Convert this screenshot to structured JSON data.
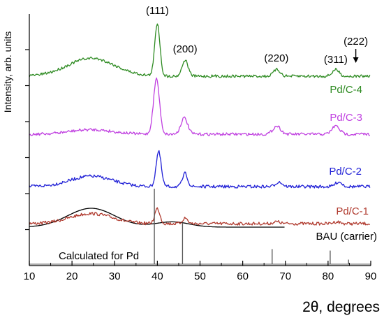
{
  "chart_data": {
    "type": "line",
    "xlabel": "2θ, degrees",
    "ylabel": "Intensity, arb. units",
    "xlim": [
      10,
      90
    ],
    "x_ticks": [
      "10",
      "20",
      "30",
      "40",
      "50",
      "60",
      "70",
      "80",
      "90"
    ],
    "grid": false,
    "peak_labels": [
      {
        "text": "(111)",
        "x": 40.0
      },
      {
        "text": "(200)",
        "x": 46.5
      },
      {
        "text": "(220)",
        "x": 67.9
      },
      {
        "text": "(311)",
        "x": 81.8
      },
      {
        "text": "(222)",
        "x": 86.5
      }
    ],
    "reference_lines": {
      "name": "Calculated for Pd",
      "color": "#555555",
      "peaks": [
        {
          "x": 39.3,
          "rel_intensity": 1.0
        },
        {
          "x": 45.9,
          "rel_intensity": 0.55
        },
        {
          "x": 66.9,
          "rel_intensity": 0.2
        },
        {
          "x": 80.5,
          "rel_intensity": 0.18
        },
        {
          "x": 84.8,
          "rel_intensity": 0.06
        }
      ]
    },
    "series": [
      {
        "name": "BAU (carrier)",
        "color": "#000000",
        "x_end": 70,
        "peaks": [
          {
            "x": 24.5,
            "height": 0.9,
            "width": 5.5
          },
          {
            "x": 43.5,
            "height": 0.25,
            "width": 4
          }
        ]
      },
      {
        "name": "Pd/C-1",
        "color": "#b03a2e",
        "peaks": [
          {
            "x": 24.5,
            "height": 0.8,
            "width": 5
          },
          {
            "x": 40.0,
            "height": 1.2,
            "width": 0.6
          },
          {
            "x": 46.5,
            "height": 0.45,
            "width": 0.6
          },
          {
            "x": 68.0,
            "height": 0.15,
            "width": 0.8
          },
          {
            "x": 82.0,
            "height": 0.15,
            "width": 0.8
          }
        ]
      },
      {
        "name": "Pd/C-2",
        "color": "#1f1fd6",
        "peaks": [
          {
            "x": 24.5,
            "height": 0.55,
            "width": 5
          },
          {
            "x": 40.3,
            "height": 1.85,
            "width": 0.6
          },
          {
            "x": 46.5,
            "height": 0.7,
            "width": 0.6
          },
          {
            "x": 68.5,
            "height": 0.25,
            "width": 0.8
          },
          {
            "x": 82.5,
            "height": 0.25,
            "width": 0.8
          }
        ]
      },
      {
        "name": "Pd/C-3",
        "color": "#c040e0",
        "peaks": [
          {
            "x": 24.5,
            "height": 0.25,
            "width": 5
          },
          {
            "x": 39.8,
            "height": 3.05,
            "width": 0.7
          },
          {
            "x": 46.3,
            "height": 0.9,
            "width": 0.8
          },
          {
            "x": 68.0,
            "height": 0.45,
            "width": 0.9
          },
          {
            "x": 81.8,
            "height": 0.45,
            "width": 0.9
          }
        ]
      },
      {
        "name": "Pd/C-4",
        "color": "#2e8b22",
        "peaks": [
          {
            "x": 24.5,
            "height": 0.95,
            "width": 5.5
          },
          {
            "x": 40.0,
            "height": 2.8,
            "width": 0.6
          },
          {
            "x": 46.5,
            "height": 0.85,
            "width": 0.7
          },
          {
            "x": 68.0,
            "height": 0.35,
            "width": 0.8
          },
          {
            "x": 81.8,
            "height": 0.35,
            "width": 0.8
          }
        ]
      }
    ]
  }
}
